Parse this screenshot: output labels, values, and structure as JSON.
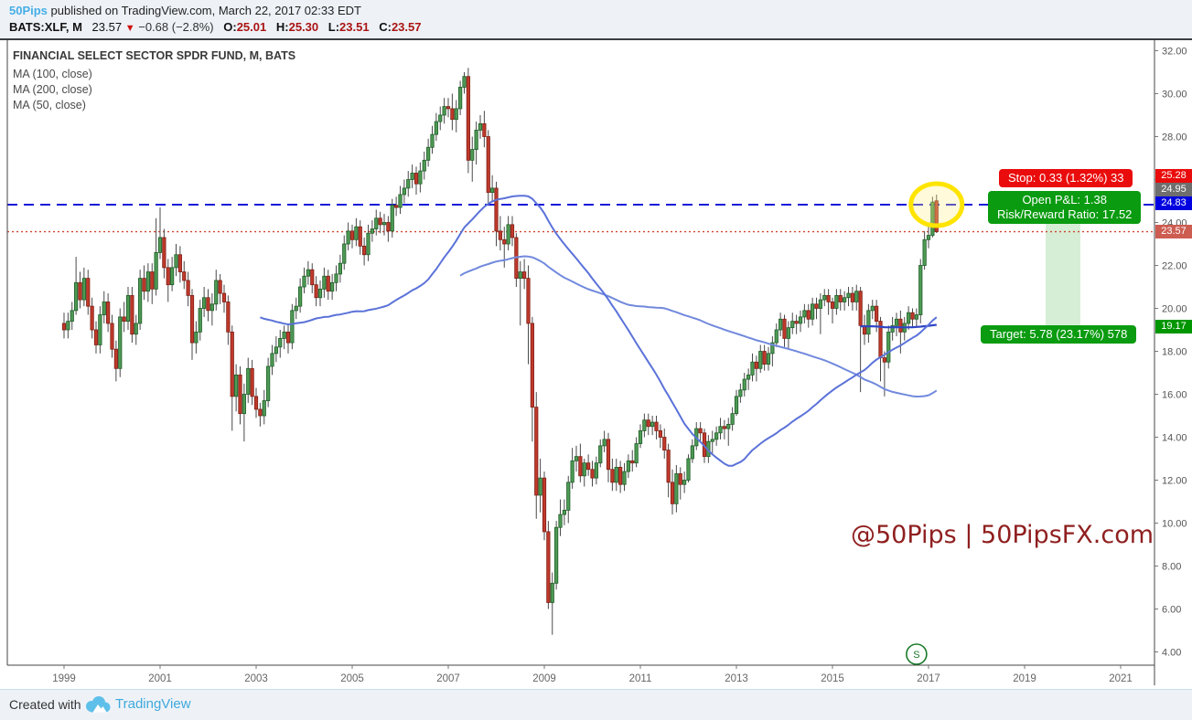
{
  "header": {
    "author": "50Pips",
    "byline_rest": " published on TradingView.com, March 22, 2017 02:33 EDT",
    "symbol": "BATS:XLF, M",
    "last_price": "23.57",
    "direction": "▼",
    "change": "−0.68 (−2.8%)",
    "o_label": "O:",
    "o": "25.01",
    "h_label": "H:",
    "h": "25.30",
    "l_label": "L:",
    "l": "23.51",
    "c_label": "C:",
    "c": "23.57"
  },
  "legend": {
    "title": "FINANCIAL SELECT SECTOR SPDR FUND, M, BATS",
    "items": [
      "MA (100, close)",
      "MA (200, close)",
      "MA (50, close)"
    ]
  },
  "overlays": {
    "stop_label": "Stop: 0.33 (1.32%) 33",
    "pnl_line1": "Open P&L: 1.38",
    "pnl_line2": "Risk/Reward Ratio: 17.52",
    "target_label": "Target: 5.78 (23.17%) 578",
    "split_marker": "S",
    "price_tags": [
      {
        "value": "25.28",
        "color": "#ea0c0c"
      },
      {
        "value": "24.95",
        "color": "#6e6e6e"
      },
      {
        "value": "24.83",
        "color": "#0000e0"
      },
      {
        "value": "23.57",
        "color": "#cd5c51"
      },
      {
        "value": "19.17",
        "color": "#009600"
      }
    ]
  },
  "watermark": "@50Pips | 50PipsFX.com",
  "footer": {
    "created_with": "Created with",
    "brand": "TradingView"
  },
  "colors": {
    "up_fill": "#4e9a54",
    "up_border": "#1f5d28",
    "down_fill": "#c0392b",
    "down_border": "#7e2015",
    "wick": "#4a4a4a",
    "ma100": "#7189dd",
    "ma200": "#2f45c8",
    "ma50": "#5b72d9",
    "dashed_line": "#1515d8",
    "dotted_line": "#d4442e",
    "band": "rgba(0,150,0,0.16)",
    "axis_text": "#555555",
    "frame": "#444444",
    "highlight": "#ffe400",
    "split": "#1a7a2a"
  },
  "chart_data": {
    "type": "candlestick",
    "title": "FINANCIAL SELECT SECTOR SPDR FUND, M, BATS",
    "symbol": "BATS:XLF",
    "timeframe": "M",
    "start": {
      "year": 1999,
      "month": 1
    },
    "x_ticks": [
      1999,
      2001,
      2003,
      2005,
      2007,
      2009,
      2011,
      2013,
      2015,
      2017,
      2019,
      2021
    ],
    "y_ticks": [
      32,
      30,
      28,
      26,
      24,
      22,
      20,
      18,
      16,
      14,
      12,
      10,
      8,
      6,
      4
    ],
    "y_range": [
      3.4,
      32.5
    ],
    "levels": {
      "stop": 25.28,
      "entry": 24.95,
      "entry_line": 24.83,
      "last": 23.57,
      "target": 19.17
    },
    "ma_series": [
      {
        "label": "MA (100, close)",
        "period": 100,
        "color_key": "ma100"
      },
      {
        "label": "MA (200, close)",
        "period": 200,
        "color_key": "ma200"
      },
      {
        "label": "MA (50, close)",
        "period": 50,
        "color_key": "ma50"
      }
    ],
    "split_marker": {
      "label": "S",
      "year": 2016,
      "month": 10
    },
    "candles": [
      [
        19.3,
        19.8,
        18.6,
        19.0
      ],
      [
        19.0,
        19.8,
        18.6,
        19.4
      ],
      [
        19.4,
        20.3,
        19.0,
        19.9
      ],
      [
        19.9,
        22.4,
        19.7,
        21.2
      ],
      [
        21.2,
        21.7,
        20.0,
        20.4
      ],
      [
        20.4,
        21.9,
        20.1,
        21.4
      ],
      [
        21.4,
        21.8,
        19.7,
        20.1
      ],
      [
        20.1,
        20.5,
        18.6,
        19.0
      ],
      [
        19.0,
        19.4,
        17.9,
        18.3
      ],
      [
        18.3,
        20.1,
        17.9,
        19.7
      ],
      [
        19.7,
        20.8,
        19.3,
        20.3
      ],
      [
        20.3,
        20.7,
        18.9,
        19.3
      ],
      [
        19.3,
        19.7,
        17.7,
        18.1
      ],
      [
        18.1,
        18.5,
        16.6,
        17.2
      ],
      [
        17.2,
        20.0,
        16.8,
        19.6
      ],
      [
        19.6,
        20.3,
        18.9,
        19.4
      ],
      [
        19.4,
        21.0,
        19.0,
        20.6
      ],
      [
        20.6,
        21.0,
        18.4,
        18.8
      ],
      [
        18.8,
        19.7,
        18.3,
        19.3
      ],
      [
        19.3,
        21.8,
        19.0,
        21.4
      ],
      [
        21.4,
        22.0,
        20.4,
        20.8
      ],
      [
        20.8,
        22.1,
        20.3,
        21.7
      ],
      [
        21.7,
        22.1,
        20.2,
        20.9
      ],
      [
        20.9,
        24.2,
        20.6,
        22.6
      ],
      [
        22.6,
        24.7,
        22.3,
        23.3
      ],
      [
        23.3,
        23.7,
        21.4,
        21.9
      ],
      [
        21.9,
        22.3,
        20.3,
        21.1
      ],
      [
        21.1,
        22.4,
        20.8,
        21.9
      ],
      [
        21.9,
        23.0,
        21.5,
        22.5
      ],
      [
        22.5,
        22.9,
        21.2,
        21.7
      ],
      [
        21.7,
        22.2,
        20.9,
        21.3
      ],
      [
        21.3,
        21.7,
        20.1,
        20.6
      ],
      [
        20.6,
        20.9,
        17.6,
        18.4
      ],
      [
        18.4,
        19.4,
        17.9,
        18.9
      ],
      [
        18.9,
        20.4,
        18.5,
        20.0
      ],
      [
        20.0,
        21.0,
        19.6,
        20.5
      ],
      [
        20.5,
        20.9,
        19.4,
        19.9
      ],
      [
        19.9,
        20.7,
        19.2,
        20.2
      ],
      [
        20.2,
        21.8,
        19.9,
        21.3
      ],
      [
        21.3,
        21.6,
        20.2,
        20.7
      ],
      [
        20.7,
        21.1,
        19.8,
        20.3
      ],
      [
        20.3,
        20.6,
        18.3,
        18.9
      ],
      [
        18.9,
        19.2,
        14.3,
        15.9
      ],
      [
        15.9,
        17.4,
        15.2,
        16.9
      ],
      [
        16.9,
        17.3,
        14.6,
        15.1
      ],
      [
        15.1,
        16.5,
        13.8,
        16.0
      ],
      [
        16.0,
        17.7,
        15.6,
        17.2
      ],
      [
        17.2,
        17.6,
        15.5,
        15.9
      ],
      [
        15.9,
        16.3,
        14.9,
        15.3
      ],
      [
        15.3,
        15.6,
        14.5,
        15.0
      ],
      [
        15.0,
        16.2,
        14.6,
        15.7
      ],
      [
        15.7,
        17.7,
        15.4,
        17.3
      ],
      [
        17.3,
        18.3,
        16.9,
        17.9
      ],
      [
        17.9,
        18.7,
        17.5,
        18.2
      ],
      [
        18.2,
        19.0,
        17.7,
        18.6
      ],
      [
        18.6,
        19.2,
        18.1,
        18.9
      ],
      [
        18.9,
        19.3,
        17.9,
        18.4
      ],
      [
        18.4,
        20.2,
        18.1,
        19.9
      ],
      [
        19.9,
        20.5,
        19.5,
        20.1
      ],
      [
        20.1,
        21.4,
        19.8,
        21.0
      ],
      [
        21.0,
        21.9,
        20.7,
        21.5
      ],
      [
        21.5,
        22.2,
        21.1,
        21.8
      ],
      [
        21.8,
        22.1,
        20.7,
        21.1
      ],
      [
        21.1,
        21.5,
        20.1,
        20.5
      ],
      [
        20.5,
        21.3,
        20.1,
        20.9
      ],
      [
        20.9,
        21.9,
        20.5,
        21.5
      ],
      [
        21.5,
        21.8,
        20.4,
        20.8
      ],
      [
        20.8,
        21.6,
        20.4,
        21.2
      ],
      [
        21.2,
        22.0,
        20.8,
        21.6
      ],
      [
        21.6,
        22.5,
        21.2,
        22.1
      ],
      [
        22.1,
        23.4,
        21.8,
        23.0
      ],
      [
        23.0,
        24.0,
        22.7,
        23.6
      ],
      [
        23.6,
        23.9,
        22.8,
        23.2
      ],
      [
        23.2,
        24.2,
        22.9,
        23.8
      ],
      [
        23.8,
        24.1,
        22.5,
        22.9
      ],
      [
        22.9,
        23.3,
        22.0,
        22.5
      ],
      [
        22.5,
        23.9,
        22.2,
        23.5
      ],
      [
        23.5,
        24.1,
        23.1,
        23.7
      ],
      [
        23.7,
        24.6,
        23.4,
        24.2
      ],
      [
        24.2,
        24.5,
        23.5,
        23.9
      ],
      [
        23.9,
        24.4,
        23.4,
        24.0
      ],
      [
        24.0,
        24.3,
        23.1,
        23.6
      ],
      [
        23.6,
        25.1,
        23.3,
        24.8
      ],
      [
        24.8,
        25.2,
        24.3,
        24.7
      ],
      [
        24.7,
        25.7,
        24.4,
        25.3
      ],
      [
        25.3,
        26.0,
        24.9,
        25.6
      ],
      [
        25.6,
        26.4,
        25.2,
        26.0
      ],
      [
        26.0,
        26.7,
        25.6,
        26.3
      ],
      [
        26.3,
        26.6,
        25.3,
        25.8
      ],
      [
        25.8,
        26.8,
        25.4,
        26.4
      ],
      [
        26.4,
        27.3,
        26.0,
        26.9
      ],
      [
        26.9,
        27.9,
        26.6,
        27.5
      ],
      [
        27.5,
        28.5,
        27.2,
        28.1
      ],
      [
        28.1,
        29.1,
        27.8,
        28.7
      ],
      [
        28.7,
        29.4,
        28.3,
        29.0
      ],
      [
        29.0,
        29.8,
        28.6,
        29.4
      ],
      [
        29.4,
        29.8,
        28.9,
        29.3
      ],
      [
        29.3,
        30.0,
        28.3,
        28.8
      ],
      [
        28.8,
        29.7,
        28.2,
        29.3
      ],
      [
        29.3,
        30.6,
        29.0,
        30.3
      ],
      [
        30.3,
        31.0,
        30.0,
        30.8
      ],
      [
        30.8,
        31.2,
        26.3,
        26.9
      ],
      [
        26.9,
        28.0,
        25.9,
        27.4
      ],
      [
        27.4,
        28.7,
        26.7,
        28.3
      ],
      [
        28.3,
        29.0,
        27.9,
        28.6
      ],
      [
        28.6,
        29.2,
        27.5,
        28.0
      ],
      [
        28.0,
        28.3,
        24.9,
        25.4
      ],
      [
        25.4,
        26.2,
        25.0,
        25.6
      ],
      [
        25.6,
        25.9,
        22.9,
        23.6
      ],
      [
        23.6,
        24.3,
        22.7,
        23.2
      ],
      [
        23.2,
        23.8,
        21.9,
        23.0
      ],
      [
        23.0,
        24.3,
        22.7,
        23.9
      ],
      [
        23.9,
        24.3,
        22.9,
        23.3
      ],
      [
        23.3,
        23.5,
        21.0,
        21.4
      ],
      [
        21.4,
        22.2,
        19.2,
        21.7
      ],
      [
        21.7,
        22.3,
        20.9,
        21.4
      ],
      [
        21.4,
        22.0,
        17.4,
        19.3
      ],
      [
        19.3,
        19.6,
        13.8,
        15.4
      ],
      [
        15.4,
        16.1,
        10.2,
        11.3
      ],
      [
        11.3,
        13.0,
        10.5,
        12.1
      ],
      [
        12.1,
        12.4,
        9.2,
        9.6
      ],
      [
        9.6,
        10.1,
        6.0,
        6.3
      ],
      [
        6.3,
        7.7,
        4.8,
        7.2
      ],
      [
        7.2,
        10.1,
        6.9,
        9.8
      ],
      [
        9.8,
        11.1,
        9.4,
        10.4
      ],
      [
        10.4,
        11.1,
        9.9,
        10.6
      ],
      [
        10.6,
        12.2,
        10.0,
        11.9
      ],
      [
        11.9,
        13.5,
        11.6,
        12.9
      ],
      [
        12.9,
        13.6,
        12.4,
        13.1
      ],
      [
        13.1,
        13.7,
        11.9,
        12.2
      ],
      [
        12.2,
        13.0,
        11.7,
        12.8
      ],
      [
        12.8,
        13.2,
        12.2,
        12.5
      ],
      [
        12.5,
        12.9,
        11.7,
        12.1
      ],
      [
        12.1,
        13.1,
        11.8,
        12.8
      ],
      [
        12.8,
        13.9,
        12.6,
        13.6
      ],
      [
        13.6,
        14.3,
        13.3,
        13.9
      ],
      [
        13.9,
        14.2,
        11.9,
        12.5
      ],
      [
        12.5,
        13.0,
        11.5,
        11.9
      ],
      [
        11.9,
        13.0,
        11.5,
        12.6
      ],
      [
        12.6,
        12.9,
        11.4,
        11.8
      ],
      [
        11.8,
        12.8,
        11.5,
        12.4
      ],
      [
        12.4,
        13.2,
        12.1,
        12.9
      ],
      [
        12.9,
        13.4,
        12.4,
        12.8
      ],
      [
        12.8,
        14.0,
        12.6,
        13.7
      ],
      [
        13.7,
        14.6,
        13.5,
        14.3
      ],
      [
        14.3,
        15.1,
        14.0,
        14.8
      ],
      [
        14.8,
        15.1,
        14.1,
        14.5
      ],
      [
        14.5,
        15.0,
        14.1,
        14.7
      ],
      [
        14.7,
        15.0,
        13.9,
        14.3
      ],
      [
        14.3,
        14.6,
        13.5,
        14.0
      ],
      [
        14.0,
        14.4,
        13.0,
        13.4
      ],
      [
        13.4,
        13.7,
        11.2,
        11.9
      ],
      [
        11.9,
        12.5,
        10.4,
        10.9
      ],
      [
        10.9,
        12.7,
        10.5,
        12.3
      ],
      [
        12.3,
        12.6,
        11.1,
        11.8
      ],
      [
        11.8,
        12.4,
        11.4,
        12.0
      ],
      [
        12.0,
        13.2,
        11.9,
        13.0
      ],
      [
        13.0,
        13.9,
        12.8,
        13.6
      ],
      [
        13.6,
        14.7,
        13.4,
        14.4
      ],
      [
        14.4,
        14.7,
        13.8,
        14.2
      ],
      [
        14.2,
        14.4,
        12.8,
        13.1
      ],
      [
        13.1,
        14.1,
        12.8,
        13.8
      ],
      [
        13.8,
        14.3,
        13.2,
        13.9
      ],
      [
        13.9,
        14.5,
        13.6,
        14.2
      ],
      [
        14.2,
        14.9,
        13.9,
        14.5
      ],
      [
        14.5,
        14.8,
        13.9,
        14.4
      ],
      [
        14.4,
        14.9,
        13.6,
        14.6
      ],
      [
        14.6,
        15.4,
        14.3,
        15.1
      ],
      [
        15.1,
        16.2,
        15.0,
        15.9
      ],
      [
        15.9,
        16.5,
        15.6,
        16.2
      ],
      [
        16.2,
        17.0,
        15.9,
        16.7
      ],
      [
        16.7,
        17.2,
        16.2,
        16.9
      ],
      [
        16.9,
        17.9,
        16.6,
        17.5
      ],
      [
        17.5,
        17.8,
        16.6,
        17.2
      ],
      [
        17.2,
        18.3,
        17.0,
        18.0
      ],
      [
        18.0,
        18.3,
        17.1,
        17.4
      ],
      [
        17.4,
        18.2,
        17.1,
        17.9
      ],
      [
        17.9,
        18.7,
        17.3,
        18.4
      ],
      [
        18.4,
        19.3,
        18.2,
        19.0
      ],
      [
        19.0,
        19.8,
        18.7,
        19.5
      ],
      [
        19.5,
        19.7,
        18.2,
        18.6
      ],
      [
        18.6,
        19.4,
        18.1,
        19.1
      ],
      [
        19.1,
        19.8,
        18.8,
        19.4
      ],
      [
        19.4,
        19.7,
        18.8,
        19.3
      ],
      [
        19.3,
        19.9,
        18.9,
        19.6
      ],
      [
        19.6,
        20.2,
        19.3,
        19.9
      ],
      [
        19.9,
        20.2,
        19.1,
        19.5
      ],
      [
        19.5,
        20.5,
        19.2,
        20.2
      ],
      [
        20.2,
        20.5,
        19.5,
        20.0
      ],
      [
        20.0,
        20.7,
        18.8,
        20.4
      ],
      [
        20.4,
        20.9,
        20.1,
        20.6
      ],
      [
        20.6,
        20.9,
        19.7,
        20.3
      ],
      [
        20.3,
        20.5,
        19.3,
        20.0
      ],
      [
        20.0,
        20.9,
        19.7,
        20.6
      ],
      [
        20.6,
        20.9,
        19.9,
        20.3
      ],
      [
        20.3,
        20.8,
        19.9,
        20.5
      ],
      [
        20.5,
        21.0,
        20.1,
        20.7
      ],
      [
        20.7,
        21.0,
        19.9,
        20.3
      ],
      [
        20.3,
        21.1,
        19.9,
        20.8
      ],
      [
        20.8,
        21.0,
        16.1,
        19.2
      ],
      [
        19.2,
        19.7,
        18.3,
        18.8
      ],
      [
        18.8,
        20.2,
        18.4,
        19.9
      ],
      [
        19.9,
        20.4,
        19.5,
        20.1
      ],
      [
        20.1,
        20.4,
        18.9,
        19.4
      ],
      [
        19.4,
        19.6,
        16.6,
        17.7
      ],
      [
        17.7,
        18.0,
        15.9,
        17.5
      ],
      [
        17.5,
        19.2,
        17.2,
        18.9
      ],
      [
        18.9,
        19.6,
        18.5,
        19.2
      ],
      [
        19.2,
        19.8,
        18.7,
        19.5
      ],
      [
        19.5,
        19.9,
        17.9,
        18.9
      ],
      [
        18.9,
        19.6,
        18.5,
        19.3
      ],
      [
        19.3,
        20.1,
        19.0,
        19.8
      ],
      [
        19.8,
        20.0,
        19.1,
        19.5
      ],
      [
        19.5,
        20.0,
        19.1,
        19.7
      ],
      [
        19.7,
        22.3,
        19.3,
        22.0
      ],
      [
        22.0,
        23.6,
        21.8,
        23.2
      ],
      [
        23.2,
        23.9,
        22.8,
        23.4
      ],
      [
        23.4,
        25.2,
        23.3,
        24.95
      ],
      [
        25.01,
        25.3,
        23.51,
        23.57
      ]
    ]
  }
}
